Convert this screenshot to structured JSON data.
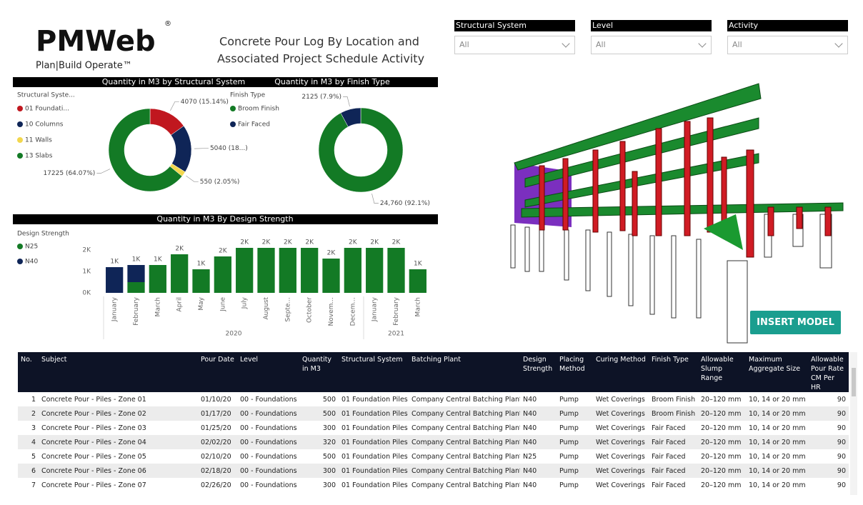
{
  "header": {
    "logo": "PMWeb",
    "registered": "®",
    "tagline": "Plan|Build Operate™",
    "title_line1": "Concrete Pour Log By Location and",
    "title_line2": "Associated Project Schedule Activity"
  },
  "filters": [
    {
      "label": "Structural System",
      "value": "All"
    },
    {
      "label": "Level",
      "value": "All"
    },
    {
      "label": "Activity",
      "value": "All"
    }
  ],
  "chart_data": [
    {
      "type": "donut",
      "title": "Quantity in M3 by Structural System",
      "legend_title": "Structural Syste...",
      "categories": [
        "01 Foundati...",
        "10 Columns",
        "11 Walls",
        "13 Slabs"
      ],
      "values": [
        4070,
        5040,
        550,
        17225
      ],
      "value_labels": [
        "4070 (15.14%)",
        "5040 (18...)",
        "550 (2.05%)",
        "17225 (64.07%)"
      ],
      "colors": [
        "#c0171f",
        "#0f2557",
        "#f2d74e",
        "#137a25"
      ]
    },
    {
      "type": "donut",
      "title": "Quantity in M3 by Finish Type",
      "legend_title": "Finish Type",
      "categories": [
        "Broom Finish",
        "Fair Faced"
      ],
      "values": [
        24760,
        2125
      ],
      "value_labels": [
        "24,760 (92.1%)",
        "2125 (7.9%)"
      ],
      "colors": [
        "#137a25",
        "#0f2557"
      ]
    },
    {
      "type": "stacked-bar",
      "title": "Quantity in M3 By Design Strength",
      "legend_title": "Design Strength",
      "categories": [
        "January",
        "February",
        "March",
        "April",
        "May",
        "June",
        "July",
        "August",
        "Septe...",
        "October",
        "Novem...",
        "Decem...",
        "January",
        "February",
        "March"
      ],
      "year_labels": [
        "2020",
        "2021"
      ],
      "series": [
        {
          "name": "N25",
          "color": "#137a25",
          "values": [
            0,
            500,
            1300,
            1800,
            1100,
            1700,
            2100,
            2100,
            2100,
            2100,
            1600,
            2100,
            2100,
            2100,
            1100
          ]
        },
        {
          "name": "N40",
          "color": "#0f2557",
          "values": [
            1200,
            800,
            0,
            0,
            0,
            0,
            0,
            0,
            0,
            0,
            0,
            0,
            0,
            0,
            0
          ]
        }
      ],
      "total_labels": [
        "1K",
        "1K",
        "1K",
        "2K",
        "1K",
        "2K",
        "2K",
        "2K",
        "2K",
        "2K",
        "2K",
        "2K",
        "2K",
        "2K",
        "1K"
      ],
      "ylim": [
        0,
        2300
      ],
      "yticks": [
        {
          "value": 0,
          "label": "0K"
        },
        {
          "value": 1000,
          "label": "1K"
        },
        {
          "value": 2000,
          "label": "2K"
        }
      ]
    }
  ],
  "model_button": "INSERT MODEL",
  "table": {
    "columns": [
      "No.",
      "Subject",
      "Pour Date",
      "Level",
      "Quantity in M3",
      "Structural System",
      "Batching Plant",
      "Design Strength",
      "Placing Method",
      "Curing Method",
      "Finish Type",
      "Allowable Slump Range",
      "Maximum Aggregate Size",
      "Allowable Pour Rate CM Per HR"
    ],
    "rows": [
      [
        1,
        "Concrete Pour - Piles - Zone 01",
        "01/10/20",
        "00 - Foundations",
        500,
        "01 Foundation Piles",
        "Company Central Batching Plant",
        "N40",
        "Pump",
        "Wet Coverings",
        "Broom Finish",
        "20–120 mm",
        "10, 14 or 20 mm",
        90
      ],
      [
        2,
        "Concrete Pour - Piles - Zone 02",
        "01/17/20",
        "00 - Foundations",
        500,
        "01 Foundation Piles",
        "Company Central Batching Plant",
        "N40",
        "Pump",
        "Wet Coverings",
        "Broom Finish",
        "20–120 mm",
        "10, 14 or 20 mm",
        90
      ],
      [
        3,
        "Concrete Pour - Piles - Zone 03",
        "01/25/20",
        "00 - Foundations",
        300,
        "01 Foundation Piles",
        "Company Central Batching Plant",
        "N40",
        "Pump",
        "Wet Coverings",
        "Fair Faced",
        "20–120 mm",
        "10, 14 or 20 mm",
        90
      ],
      [
        4,
        "Concrete Pour - Piles - Zone 04",
        "02/02/20",
        "00 - Foundations",
        320,
        "01 Foundation Piles",
        "Company Central Batching Plant",
        "N40",
        "Pump",
        "Wet Coverings",
        "Fair Faced",
        "20–120 mm",
        "10, 14 or 20 mm",
        90
      ],
      [
        5,
        "Concrete Pour - Piles - Zone 05",
        "02/10/20",
        "00 - Foundations",
        500,
        "01 Foundation Piles",
        "Company Central Batching Plant",
        "N25",
        "Pump",
        "Wet Coverings",
        "Fair Faced",
        "20–120 mm",
        "10, 14 or 20 mm",
        90
      ],
      [
        6,
        "Concrete Pour - Piles - Zone 06",
        "02/18/20",
        "00 - Foundations",
        300,
        "01 Foundation Piles",
        "Company Central Batching Plant",
        "N40",
        "Pump",
        "Wet Coverings",
        "Fair Faced",
        "20–120 mm",
        "10, 14 or 20 mm",
        90
      ],
      [
        7,
        "Concrete Pour - Piles - Zone 07",
        "02/26/20",
        "00 - Foundations",
        300,
        "01 Foundation Piles",
        "Company Central Batching Plant",
        "N40",
        "Pump",
        "Wet Coverings",
        "Fair Faced",
        "20–120 mm",
        "10, 14 or 20 mm",
        90
      ]
    ]
  }
}
